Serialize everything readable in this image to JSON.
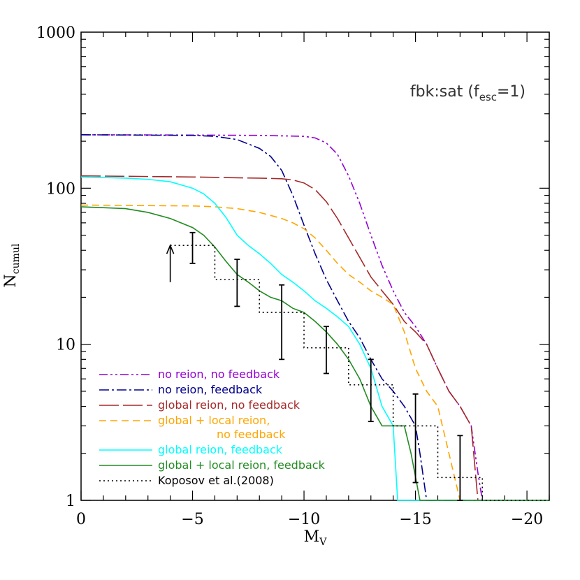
{
  "chart_data": {
    "type": "line",
    "xlabel": "M",
    "xlabel_sub": "V",
    "ylabel": "N",
    "ylabel_sub": "cumul",
    "annotation": {
      "main": "fbk:sat (f",
      "sub": "esc",
      "tail": "=1)"
    },
    "xlim": [
      0,
      -21
    ],
    "ylim": [
      1,
      1000
    ],
    "yscale": "log",
    "xticks": [
      0,
      -5,
      -10,
      -15,
      -20
    ],
    "xtick_labels": [
      "0",
      "−5",
      "−10",
      "−15",
      "−20"
    ],
    "yticks": [
      1,
      10,
      100,
      1000
    ],
    "ytick_labels": [
      "1",
      "10",
      "100",
      "1000"
    ],
    "legend_position": "bottom-left",
    "series": [
      {
        "name": "no reion, no feedback",
        "color": "#9400d3",
        "dash": "12,4,3,4,3,4",
        "x": [
          0,
          -5,
          -8,
          -10,
          -10.5,
          -11,
          -11.5,
          -12,
          -12.5,
          -13,
          -13.5,
          -14,
          -14.5,
          -15,
          -15.5,
          -16,
          -16.5,
          -17,
          -17.5,
          -17.8,
          -18,
          -21
        ],
        "y": [
          220,
          219,
          218,
          215,
          210,
          195,
          165,
          120,
          80,
          50,
          32,
          22,
          16,
          13,
          10,
          7,
          5,
          4,
          3,
          1.5,
          1,
          1
        ]
      },
      {
        "name": "no reion, feedback",
        "color": "#00008b",
        "dash": "14,4,3,4",
        "x": [
          0,
          -5,
          -6,
          -7,
          -8,
          -8.5,
          -9,
          -9.5,
          -10,
          -10.5,
          -11,
          -11.5,
          -12,
          -12.5,
          -13,
          -13.5,
          -14,
          -14.5,
          -15,
          -15.2,
          -15.5,
          -21
        ],
        "y": [
          220,
          218,
          215,
          205,
          180,
          160,
          130,
          90,
          58,
          38,
          26,
          19,
          14,
          11,
          8,
          6,
          5,
          4,
          3,
          2,
          1,
          1
        ]
      },
      {
        "name": "global reion, no feedback",
        "color": "#a52a2a",
        "dash": "28,6",
        "x": [
          0,
          -5,
          -8,
          -9,
          -9.5,
          -10,
          -10.5,
          -11,
          -11.5,
          -12,
          -12.5,
          -13,
          -13.5,
          -14,
          -14.5,
          -15,
          -15.5,
          -16,
          -16.5,
          -17,
          -17.5,
          -17.8,
          -21
        ],
        "y": [
          120,
          118,
          116,
          115,
          113,
          108,
          98,
          82,
          64,
          48,
          36,
          27,
          22,
          18,
          14,
          12,
          10,
          7,
          5,
          4,
          3,
          1,
          1
        ]
      },
      {
        "name": "global + local reion,\n no feedback",
        "color": "#ffa500",
        "dash": "10,6",
        "x": [
          0,
          -5,
          -6,
          -7,
          -8,
          -9,
          -9.5,
          -10,
          -10.5,
          -11,
          -11.5,
          -12,
          -12.5,
          -13,
          -13.5,
          -14,
          -14.5,
          -15,
          -15.5,
          -16,
          -16.5,
          -17,
          -21
        ],
        "y": [
          78,
          77,
          76,
          74,
          70,
          64,
          60,
          55,
          48,
          40,
          33,
          28,
          25,
          22,
          20,
          18,
          12,
          7,
          5,
          4,
          2,
          1,
          1
        ]
      },
      {
        "name": "global reion, feedback",
        "color": "#00ffff",
        "dash": "",
        "x": [
          0,
          -1,
          -2,
          -3,
          -4,
          -5,
          -5.5,
          -6,
          -6.5,
          -7,
          -7.5,
          -8,
          -8.5,
          -9,
          -9.5,
          -10,
          -10.5,
          -11,
          -11.5,
          -12,
          -12.5,
          -13,
          -13.5,
          -14,
          -14.2,
          -21
        ],
        "y": [
          118,
          117,
          116,
          114,
          110,
          100,
          92,
          80,
          65,
          50,
          43,
          38,
          33,
          28,
          25,
          22,
          19,
          17,
          15,
          13,
          10,
          7,
          4,
          3,
          1,
          1
        ]
      },
      {
        "name": "global + local reion, feedback",
        "color": "#228b22",
        "dash": "",
        "x": [
          0,
          -1,
          -2,
          -3,
          -4,
          -5,
          -5.5,
          -6,
          -6.5,
          -7,
          -7.5,
          -8,
          -8.5,
          -9,
          -9.5,
          -10,
          -10.5,
          -11,
          -11.5,
          -12,
          -12.5,
          -13,
          -13.5,
          -14,
          -14.5,
          -14.8,
          -15.2,
          -21
        ],
        "y": [
          76,
          75,
          74,
          70,
          64,
          56,
          50,
          42,
          34,
          28,
          25,
          22,
          20,
          19,
          17,
          16,
          14,
          12,
          10,
          8,
          6,
          4,
          3,
          3,
          3,
          2,
          1,
          1
        ]
      },
      {
        "name": "Koposov et al.(2008)",
        "color": "#000000",
        "dash": "2,4",
        "step": true,
        "x": [
          -4,
          -6,
          -8,
          -10,
          -12,
          -14,
          -16,
          -18,
          -21
        ],
        "y": [
          43,
          26,
          16,
          9.5,
          5.5,
          3,
          1.4,
          1,
          1
        ]
      }
    ],
    "error_bars": {
      "x": [
        -5,
        -7,
        -9,
        -11,
        -13,
        -15,
        -17
      ],
      "y_low": [
        33,
        17.5,
        8,
        6.5,
        3.2,
        1.3,
        1
      ],
      "y_high": [
        52,
        35,
        24,
        13,
        8,
        4.8,
        2.6
      ]
    },
    "arrow": {
      "x": -4,
      "y_from": 25,
      "y_to": 43
    }
  }
}
